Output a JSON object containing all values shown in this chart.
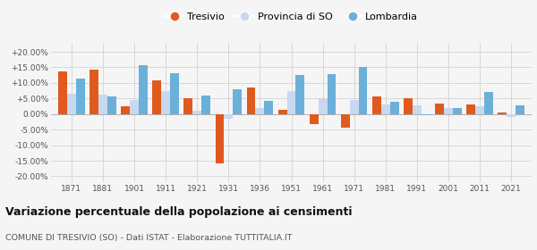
{
  "years": [
    1871,
    1881,
    1901,
    1911,
    1921,
    1931,
    1936,
    1951,
    1961,
    1971,
    1981,
    1991,
    2001,
    2011,
    2021
  ],
  "tresivio": [
    13.8,
    14.2,
    2.5,
    10.8,
    5.2,
    -16.0,
    8.5,
    1.5,
    -3.2,
    -4.5,
    5.7,
    5.0,
    3.3,
    3.0,
    0.4
  ],
  "provincia_so": [
    6.5,
    6.3,
    4.5,
    7.3,
    1.2,
    -1.5,
    2.0,
    7.5,
    4.9,
    4.6,
    3.0,
    2.8,
    1.8,
    2.5,
    -0.8
  ],
  "lombardia": [
    11.5,
    5.7,
    15.8,
    13.2,
    6.0,
    8.0,
    4.2,
    12.5,
    12.8,
    15.2,
    4.0,
    -0.3,
    1.9,
    7.2,
    2.7
  ],
  "tresivio_color": "#e05a1e",
  "provincia_color": "#c8d8f0",
  "lombardia_color": "#6bb0d8",
  "title": "Variazione percentuale della popolazione ai censimenti",
  "subtitle": "COMUNE DI TRESIVIO (SO) - Dati ISTAT - Elaborazione TUTTITALIA.IT",
  "ylim": [
    -22,
    23
  ],
  "yticks": [
    -20,
    -15,
    -10,
    -5,
    0,
    5,
    10,
    15,
    20
  ],
  "legend_labels": [
    "Tresivio",
    "Provincia di SO",
    "Lombardia"
  ],
  "bg_color": "#f5f5f5"
}
